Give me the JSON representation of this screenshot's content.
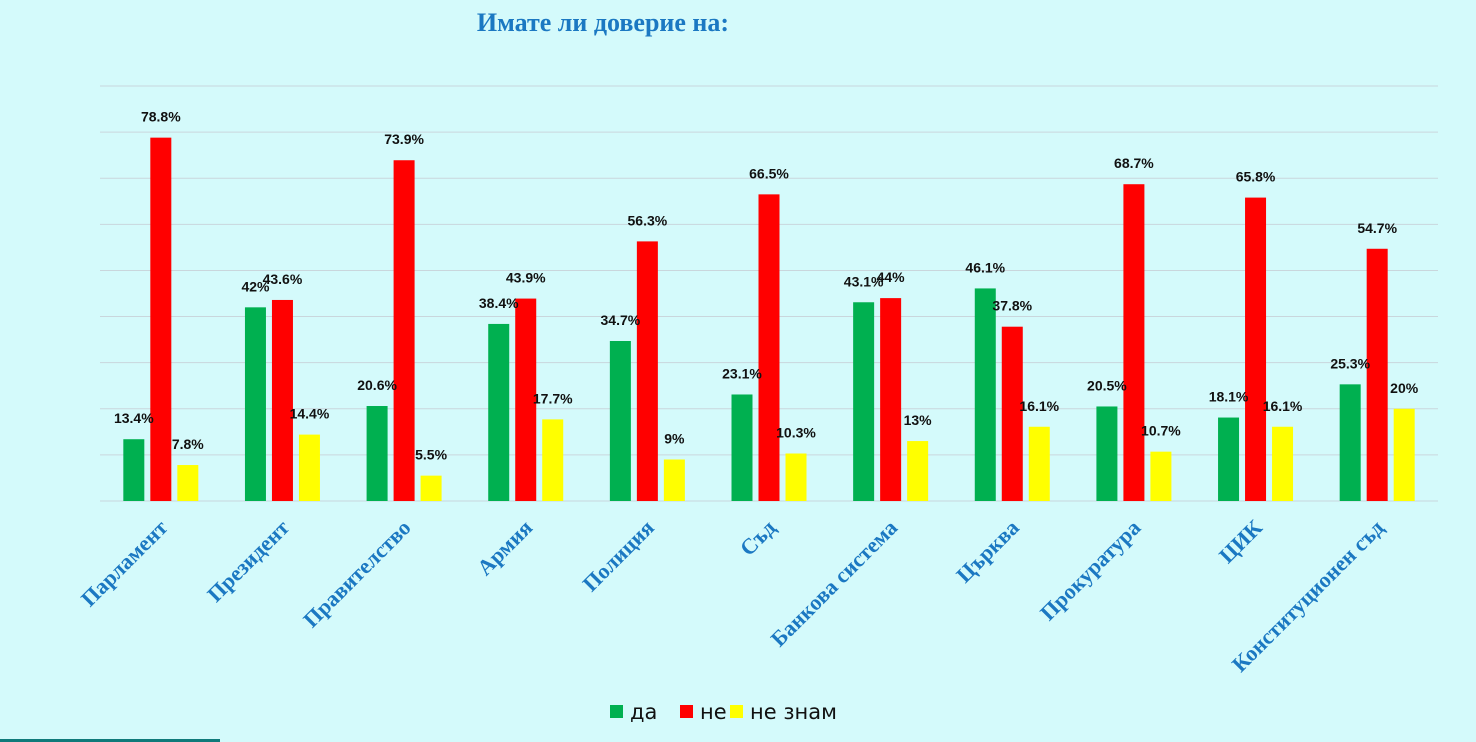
{
  "chart_data": {
    "type": "bar",
    "title": "Имате  ли доверие на:",
    "categories": [
      "Парламент",
      "Президент",
      "Правителство",
      "Армия",
      "Полиция",
      "Съд",
      "Банкова система",
      "Църква",
      "Прокуратура",
      "ЦИК",
      "Конституционен съд"
    ],
    "series": [
      {
        "name": "да",
        "color": "#00b050",
        "values": [
          13.4,
          42,
          20.6,
          38.4,
          34.7,
          23.1,
          43.1,
          46.1,
          20.5,
          18.1,
          25.3
        ],
        "labels": [
          "13.4%",
          "42%",
          "20.6%",
          "38.4%",
          "34.7%",
          "23.1%",
          "43.1%",
          "46.1%",
          "20.5%",
          "18.1%",
          "25.3%"
        ]
      },
      {
        "name": "не",
        "color": "#ff0000",
        "values": [
          78.8,
          43.6,
          73.9,
          43.9,
          56.3,
          66.5,
          44,
          37.8,
          68.7,
          65.8,
          54.7
        ],
        "labels": [
          "78.8%",
          "43.6%",
          "73.9%",
          "43.9%",
          "56.3%",
          "66.5%",
          "44%",
          "37.8%",
          "68.7%",
          "65.8%",
          "54.7%"
        ]
      },
      {
        "name": "не знам",
        "color": "#ffff00",
        "values": [
          7.8,
          14.4,
          5.5,
          17.7,
          9,
          10.3,
          13,
          16.1,
          10.7,
          16.1,
          20
        ],
        "labels": [
          "7.8%",
          "14.4%",
          "5.5%",
          "17.7%",
          "9%",
          "10.3%",
          "13%",
          "16.1%",
          "10.7%",
          "16.1%",
          "20%"
        ]
      }
    ],
    "ylim": [
      0,
      90
    ],
    "grid": true,
    "legend": "bottom-center"
  }
}
